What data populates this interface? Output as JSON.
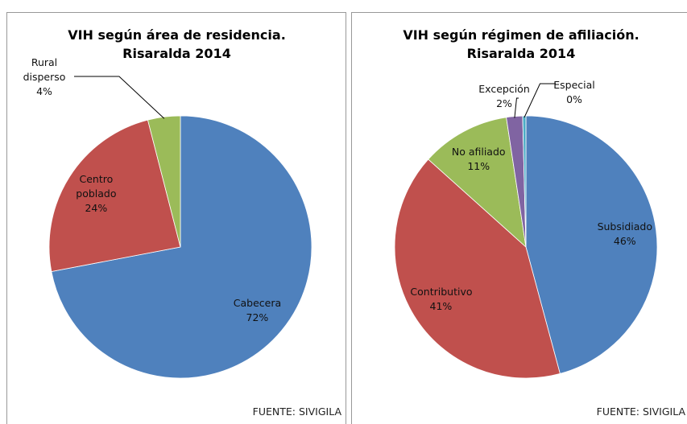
{
  "chart_data": [
    {
      "type": "pie",
      "title": "VIH según área de residencia. Risaralda 2014",
      "source": "FUENTE: SIVIGILA",
      "categories": [
        "Cabecera",
        "Centro poblado",
        "Rural disperso"
      ],
      "values": [
        72,
        24,
        4
      ],
      "value_labels": [
        "72%",
        "24%",
        "4%"
      ],
      "colors": [
        "#4f81bd",
        "#c0504d",
        "#9bbb59"
      ]
    },
    {
      "type": "pie",
      "title": "VIH según régimen de afiliación. Risaralda 2014",
      "source": "FUENTE: SIVIGILA",
      "categories": [
        "Subsidiado",
        "Contributivo",
        "No afiliado",
        "Excepción",
        "Especial"
      ],
      "values": [
        46,
        41,
        11,
        2,
        0.4
      ],
      "value_labels": [
        "46%",
        "41%",
        "11%",
        "2%",
        "0%"
      ],
      "colors": [
        "#4f81bd",
        "#c0504d",
        "#9bbb59",
        "#8064a2",
        "#4bacc6"
      ]
    }
  ]
}
